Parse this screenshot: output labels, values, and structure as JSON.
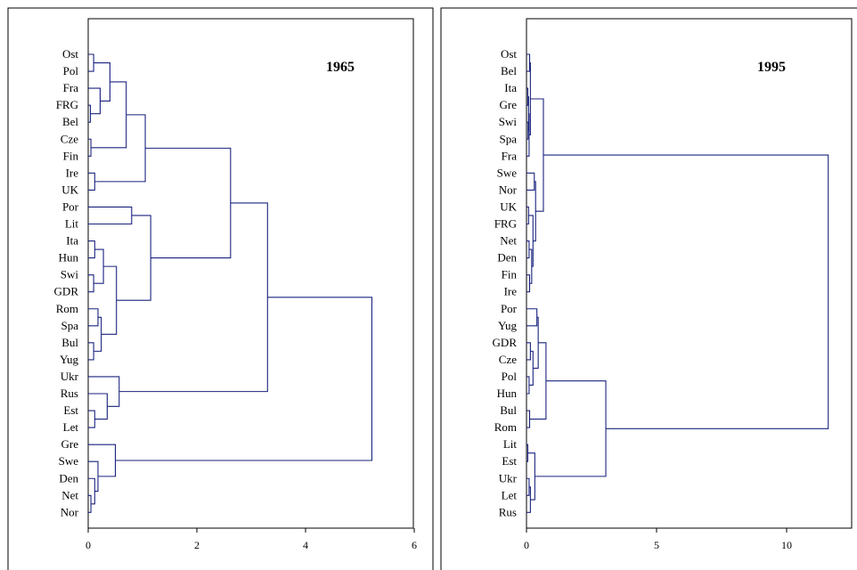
{
  "chart_data": [
    {
      "type": "dendrogram",
      "title": "1965",
      "xlim": [
        0,
        6
      ],
      "xticks": [
        "0",
        "2",
        "4",
        "6"
      ],
      "leaves": [
        "Ost",
        "Pol",
        "Fra",
        "FRG",
        "Bel",
        "Cze",
        "Fin",
        "Ire",
        "UK",
        "Por",
        "Lit",
        "Ita",
        "Hun",
        "Swi",
        "GDR",
        "Rom",
        "Spa",
        "Bul",
        "Yug",
        "Ukr",
        "Rus",
        "Est",
        "Let",
        "Gre",
        "Swe",
        "Den",
        "Net",
        "Nor"
      ],
      "merges": [
        {
          "id": "a1",
          "left": "FRG",
          "right": "Bel",
          "height": 0.04
        },
        {
          "id": "a2",
          "left": "Fra",
          "right": "a1",
          "height": 0.22
        },
        {
          "id": "a3",
          "left": "Ost",
          "right": "Pol",
          "height": 0.1
        },
        {
          "id": "a4",
          "left": "a3",
          "right": "a2",
          "height": 0.4
        },
        {
          "id": "a5",
          "left": "Cze",
          "right": "Fin",
          "height": 0.05
        },
        {
          "id": "a6",
          "left": "a4",
          "right": "a5",
          "height": 0.7
        },
        {
          "id": "a7",
          "left": "Ire",
          "right": "UK",
          "height": 0.12
        },
        {
          "id": "a8",
          "left": "a6",
          "right": "a7",
          "height": 1.05
        },
        {
          "id": "a9",
          "left": "Por",
          "right": "Lit",
          "height": 0.8
        },
        {
          "id": "a10",
          "left": "Ita",
          "right": "Hun",
          "height": 0.12
        },
        {
          "id": "a11",
          "left": "Swi",
          "right": "GDR",
          "height": 0.1
        },
        {
          "id": "a12",
          "left": "a10",
          "right": "a11",
          "height": 0.28
        },
        {
          "id": "a13",
          "left": "Rom",
          "right": "Spa",
          "height": 0.18
        },
        {
          "id": "a14",
          "left": "Bul",
          "right": "Yug",
          "height": 0.1
        },
        {
          "id": "a15",
          "left": "a13",
          "right": "a14",
          "height": 0.24
        },
        {
          "id": "a16",
          "left": "a12",
          "right": "a15",
          "height": 0.52
        },
        {
          "id": "a17",
          "left": "a9",
          "right": "a16",
          "height": 1.15
        },
        {
          "id": "a18",
          "left": "a8",
          "right": "a17",
          "height": 2.62
        },
        {
          "id": "a19",
          "left": "Est",
          "right": "Let",
          "height": 0.12
        },
        {
          "id": "a20",
          "left": "Rus",
          "right": "a19",
          "height": 0.35
        },
        {
          "id": "a21",
          "left": "Ukr",
          "right": "a20",
          "height": 0.57
        },
        {
          "id": "a22",
          "left": "a18",
          "right": "a21",
          "height": 3.3
        },
        {
          "id": "a23",
          "left": "Net",
          "right": "Nor",
          "height": 0.05
        },
        {
          "id": "a24",
          "left": "Den",
          "right": "a23",
          "height": 0.12
        },
        {
          "id": "a25",
          "left": "Swe",
          "right": "a24",
          "height": 0.18
        },
        {
          "id": "a26",
          "left": "Gre",
          "right": "a25",
          "height": 0.5
        },
        {
          "id": "a27",
          "left": "a22",
          "right": "a26",
          "height": 5.22
        }
      ]
    },
    {
      "type": "dendrogram",
      "title": "1995",
      "xlim": [
        0,
        12.5
      ],
      "xticks": [
        "0",
        "5",
        "10"
      ],
      "leaves": [
        "Ost",
        "Bel",
        "Ita",
        "Gre",
        "Swi",
        "Spa",
        "Fra",
        "Swe",
        "Nor",
        "UK",
        "FRG",
        "Net",
        "Den",
        "Fin",
        "Ire",
        "Por",
        "Yug",
        "GDR",
        "Cze",
        "Pol",
        "Hun",
        "Bul",
        "Rom",
        "Lit",
        "Est",
        "Ukr",
        "Let",
        "Rus"
      ],
      "merges": [
        {
          "id": "b1",
          "left": "Ost",
          "right": "Bel",
          "height": 0.12
        },
        {
          "id": "b2",
          "left": "Ita",
          "right": "Gre",
          "height": 0.05
        },
        {
          "id": "b3",
          "left": "Swi",
          "right": "Spa",
          "height": 0.06
        },
        {
          "id": "b4",
          "left": "b2",
          "right": "b3",
          "height": 0.08
        },
        {
          "id": "b5",
          "left": "b4",
          "right": "Fra",
          "height": 0.1
        },
        {
          "id": "b6",
          "left": "b1",
          "right": "b5",
          "height": 0.15
        },
        {
          "id": "b7",
          "left": "Swe",
          "right": "Nor",
          "height": 0.3
        },
        {
          "id": "b8",
          "left": "UK",
          "right": "FRG",
          "height": 0.08
        },
        {
          "id": "b9",
          "left": "Net",
          "right": "Den",
          "height": 0.1
        },
        {
          "id": "b10",
          "left": "Fin",
          "right": "Ire",
          "height": 0.12
        },
        {
          "id": "b11",
          "left": "b9",
          "right": "b10",
          "height": 0.2
        },
        {
          "id": "b12",
          "left": "b8",
          "right": "b11",
          "height": 0.25
        },
        {
          "id": "b13",
          "left": "b7",
          "right": "b12",
          "height": 0.35
        },
        {
          "id": "b14",
          "left": "b6",
          "right": "b13",
          "height": 0.65
        },
        {
          "id": "b15",
          "left": "Por",
          "right": "Yug",
          "height": 0.4
        },
        {
          "id": "b16",
          "left": "GDR",
          "right": "Cze",
          "height": 0.15
        },
        {
          "id": "b17",
          "left": "Pol",
          "right": "Hun",
          "height": 0.1
        },
        {
          "id": "b18",
          "left": "b16",
          "right": "b17",
          "height": 0.25
        },
        {
          "id": "b19",
          "left": "b15",
          "right": "b18",
          "height": 0.45
        },
        {
          "id": "b20",
          "left": "Bul",
          "right": "Rom",
          "height": 0.12
        },
        {
          "id": "b21",
          "left": "b19",
          "right": "b20",
          "height": 0.75
        },
        {
          "id": "b22",
          "left": "Lit",
          "right": "Est",
          "height": 0.05
        },
        {
          "id": "b23",
          "left": "Ukr",
          "right": "Let",
          "height": 0.1
        },
        {
          "id": "b24",
          "left": "b23",
          "right": "Rus",
          "height": 0.15
        },
        {
          "id": "b25",
          "left": "b22",
          "right": "b24",
          "height": 0.32
        },
        {
          "id": "b26",
          "left": "b21",
          "right": "b25",
          "height": 3.05
        },
        {
          "id": "b27",
          "left": "b14",
          "right": "b26",
          "height": 11.6
        }
      ]
    }
  ]
}
